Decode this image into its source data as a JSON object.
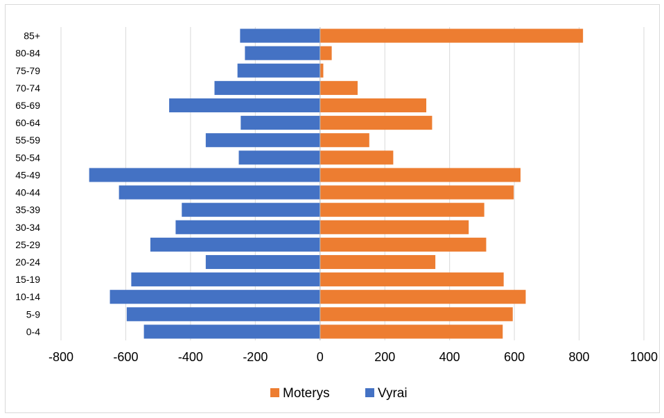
{
  "chart_data": {
    "type": "bar",
    "orientation": "horizontal",
    "layout": "population-pyramid",
    "categories": [
      "0-4",
      "5-9",
      "10-14",
      "15-19",
      "20-24",
      "25-29",
      "30-34",
      "35-39",
      "40-44",
      "45-49",
      "50-54",
      "55-59",
      "60-64",
      "65-69",
      "70-74",
      "75-79",
      "80-84",
      "85+"
    ],
    "series": [
      {
        "name": "Moterys",
        "color": "#ed7d31",
        "values": [
          564,
          595,
          635,
          567,
          356,
          513,
          459,
          507,
          598,
          619,
          226,
          152,
          346,
          328,
          116,
          10,
          36,
          812
        ]
      },
      {
        "name": "Vyrai",
        "color": "#4472c4",
        "values": [
          -544,
          -597,
          -649,
          -583,
          -353,
          -524,
          -446,
          -427,
          -621,
          -713,
          -251,
          -353,
          -245,
          -466,
          -326,
          -255,
          -232,
          -247
        ]
      }
    ],
    "xlim": [
      -800,
      1000
    ],
    "xticks": [
      "-800",
      "-600",
      "-400",
      "-200",
      "0",
      "200",
      "400",
      "600",
      "800",
      "1000"
    ],
    "grid": "vertical",
    "legend": "bottom",
    "title": "",
    "xlabel": "",
    "ylabel": ""
  }
}
